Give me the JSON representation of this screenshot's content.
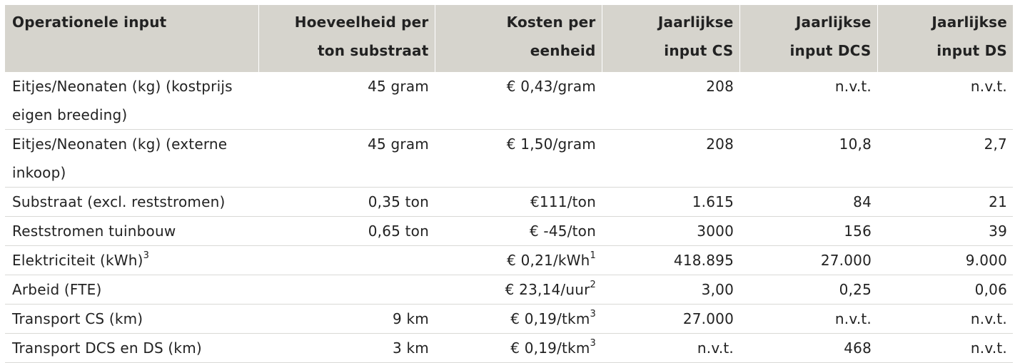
{
  "headers": [
    {
      "line1": "Operationele input",
      "line2": ""
    },
    {
      "line1": "Hoeveelheid per",
      "line2": "ton substraat"
    },
    {
      "line1": "Kosten per",
      "line2": "eenheid"
    },
    {
      "line1": "Jaarlijkse",
      "line2": "input CS"
    },
    {
      "line1": "Jaarlijkse",
      "line2": "input DCS"
    },
    {
      "line1": "Jaarlijkse",
      "line2": "input DS"
    }
  ],
  "rows": [
    {
      "input": "Eitjes/Neonaten (kg) (kostprijs eigen breeding)",
      "input_sup": "",
      "quantity": "45 gram",
      "cost": "€ 0,43/gram",
      "cost_sup": "",
      "cs": "208",
      "dcs": "n.v.t.",
      "ds": "n.v.t."
    },
    {
      "input": "Eitjes/Neonaten (kg) (externe inkoop)",
      "input_sup": "",
      "quantity": "45 gram",
      "cost": "€ 1,50/gram",
      "cost_sup": "",
      "cs": "208",
      "dcs": "10,8",
      "ds": "2,7"
    },
    {
      "input": "Substraat (excl. reststromen)",
      "input_sup": "",
      "quantity": "0,35 ton",
      "cost": "€111/ton",
      "cost_sup": "",
      "cs": "1.615",
      "dcs": "84",
      "ds": "21"
    },
    {
      "input": "Reststromen tuinbouw",
      "input_sup": "",
      "quantity": "0,65 ton",
      "cost": "€ -45/ton",
      "cost_sup": "",
      "cs": "3000",
      "dcs": "156",
      "ds": "39"
    },
    {
      "input": "Elektriciteit (kWh)",
      "input_sup": "3",
      "quantity": "",
      "cost": "€ 0,21/kWh",
      "cost_sup": "1",
      "cs": "418.895",
      "dcs": "27.000",
      "ds": "9.000"
    },
    {
      "input": "Arbeid (FTE)",
      "input_sup": "",
      "quantity": "",
      "cost": "€ 23,14/uur",
      "cost_sup": "2",
      "cs": "3,00",
      "dcs": "0,25",
      "ds": "0,06"
    },
    {
      "input": "Transport CS (km)",
      "input_sup": "",
      "quantity": "9 km",
      "cost": "€ 0,19/tkm",
      "cost_sup": "3",
      "cs": "27.000",
      "dcs": "n.v.t.",
      "ds": "n.v.t."
    },
    {
      "input": "Transport DCS en DS (km)",
      "input_sup": "",
      "quantity": "3 km",
      "cost": "€ 0,19/tkm",
      "cost_sup": "3",
      "cs": "n.v.t.",
      "dcs": "468",
      "ds": "n.v.t."
    }
  ],
  "colors": {
    "header_background": "#d6d4cd",
    "row_divider": "#d9d9d6",
    "text": "#222222"
  }
}
